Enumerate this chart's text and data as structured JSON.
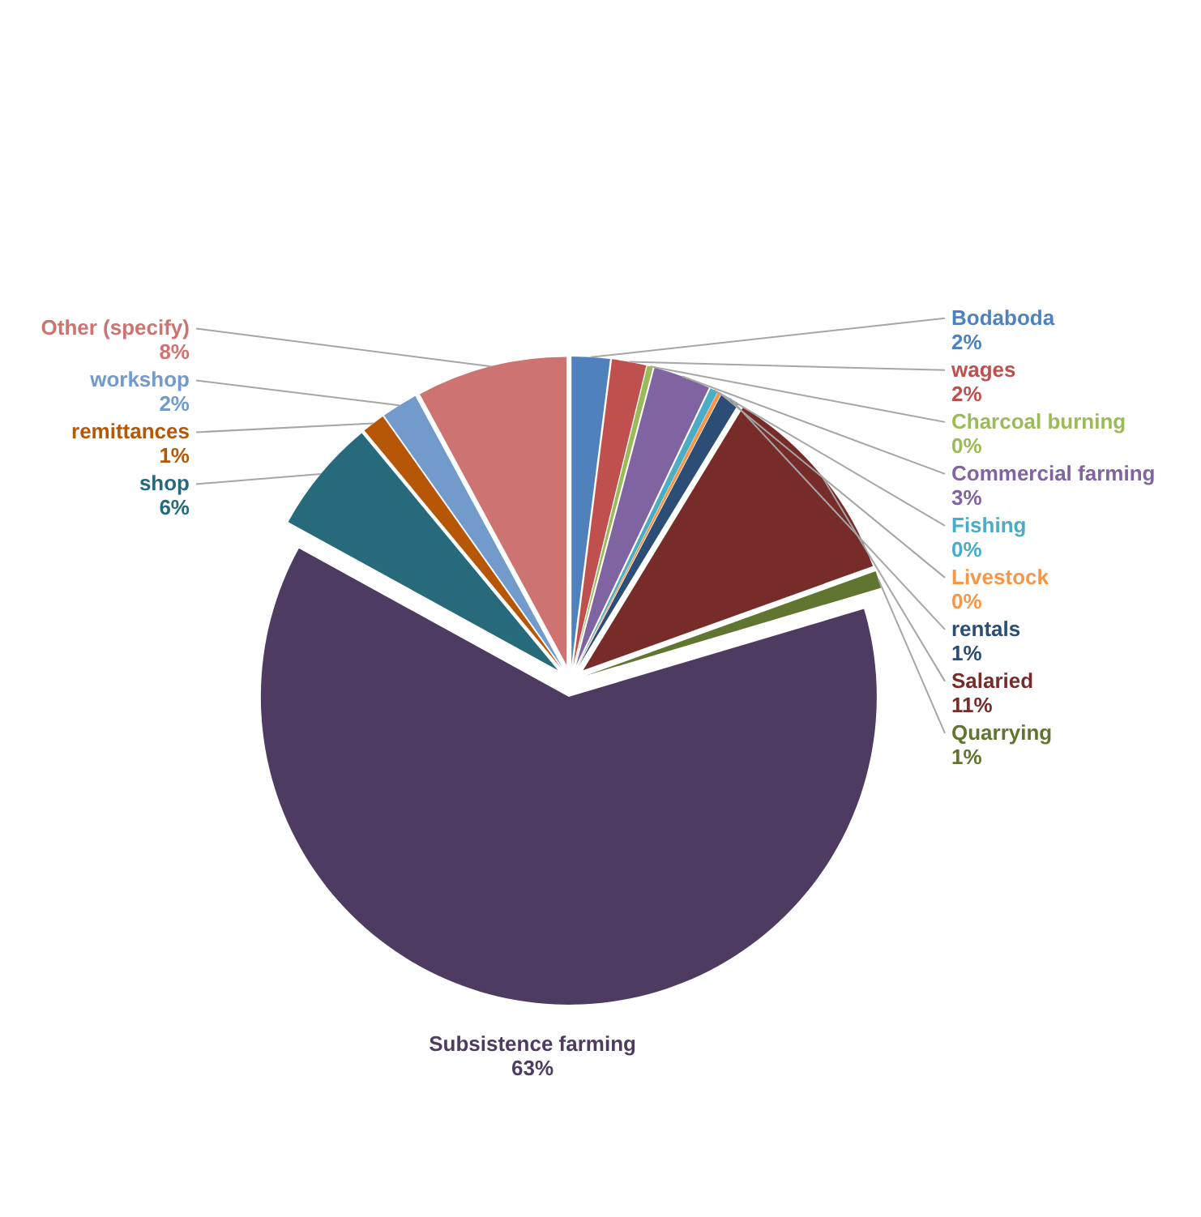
{
  "chart_data": {
    "type": "pie",
    "categories": [
      "Bodaboda",
      "wages",
      "Charcoal burning",
      "Commercial farming",
      "Fishing",
      "Livestock",
      "rentals",
      "Salaried",
      "Quarrying",
      "Subsistence farming",
      "shop",
      "remittances",
      "workshop",
      "Other (specify)"
    ],
    "values": [
      2.0,
      1.8,
      0.3,
      3.0,
      0.4,
      0.2,
      1.0,
      10.8,
      0.9,
      62.6,
      6.0,
      1.2,
      1.9,
      7.9
    ],
    "value_labels": [
      "2%",
      "2%",
      "0%",
      "3%",
      "0%",
      "0%",
      "1%",
      "11%",
      "1%",
      "63%",
      "6%",
      "1%",
      "2%",
      "8%"
    ],
    "colors": [
      "#4f81bd",
      "#c0504d",
      "#9bbb59",
      "#8064a2",
      "#4bacc6",
      "#f79646",
      "#2c4d75",
      "#772c2a",
      "#5f7530",
      "#4d3b62",
      "#276a7c",
      "#b65708",
      "#729aca",
      "#cd7371"
    ]
  }
}
